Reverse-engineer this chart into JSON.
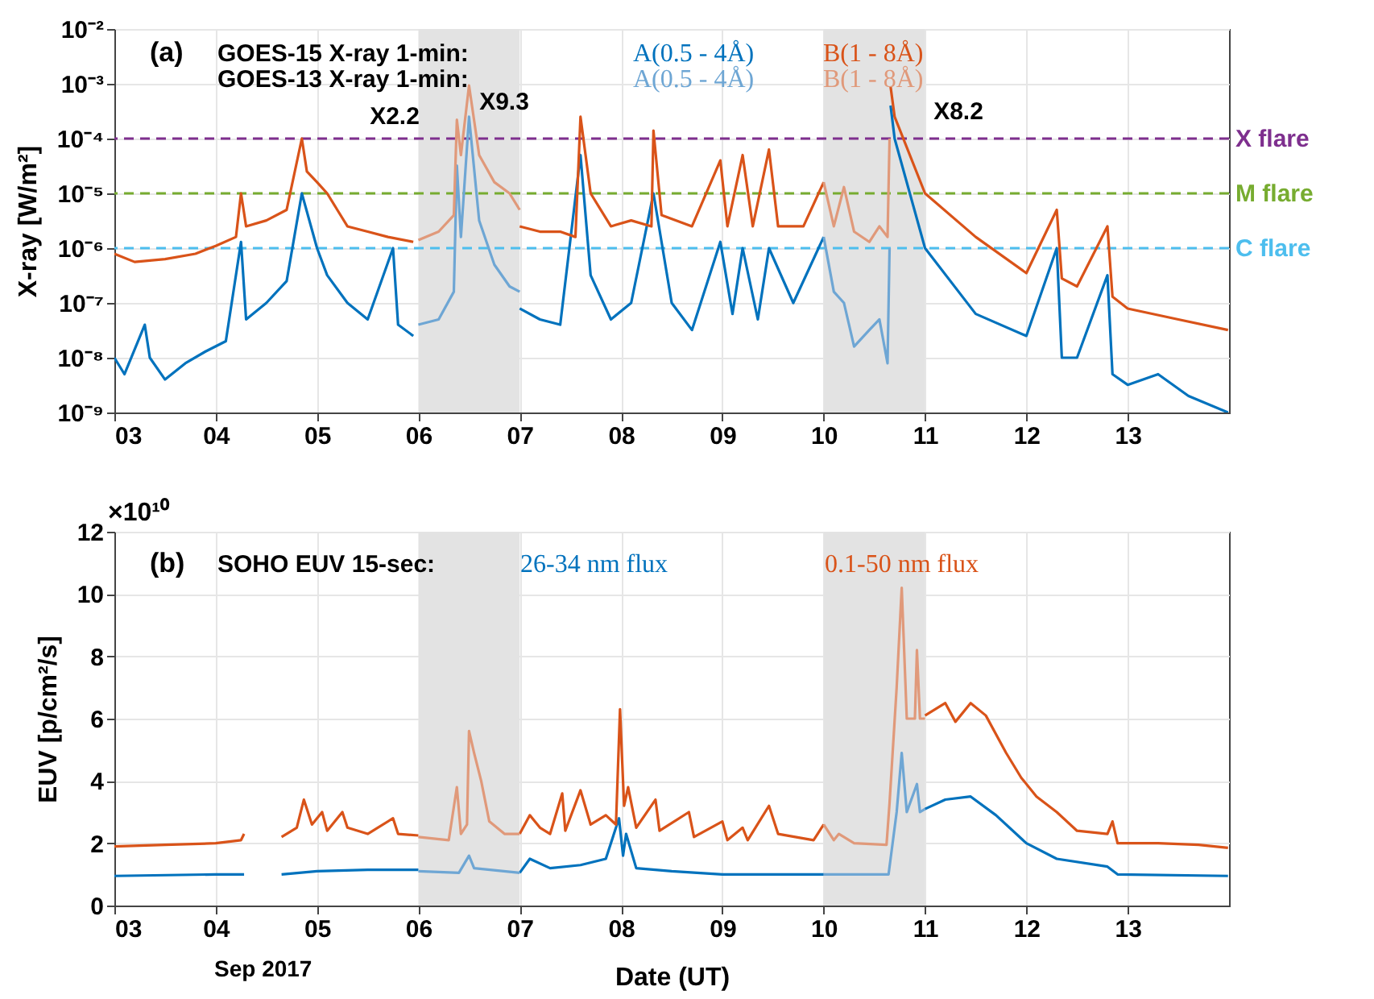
{
  "chart_data": [
    {
      "type": "line",
      "ylabel": "X-ray [W/m²]",
      "log": true,
      "grid": true,
      "legend": "top",
      "line_style": "solid",
      "xlim": [
        3,
        14
      ],
      "xticks": [
        {
          "value": 3,
          "label": "03"
        },
        {
          "value": 4,
          "label": "04"
        },
        {
          "value": 5,
          "label": "05"
        },
        {
          "value": 6,
          "label": "06"
        },
        {
          "value": 7,
          "label": "07"
        },
        {
          "value": 8,
          "label": "08"
        },
        {
          "value": 9,
          "label": "09"
        },
        {
          "value": 10,
          "label": "10"
        },
        {
          "value": 11,
          "label": "11"
        },
        {
          "value": 12,
          "label": "12"
        },
        {
          "value": 13,
          "label": "13"
        }
      ],
      "ylim": [
        1e-09,
        0.01
      ],
      "yticks": [
        {
          "value": 1e-09,
          "label": "10⁻⁹"
        },
        {
          "value": 1e-08,
          "label": "10⁻⁸"
        },
        {
          "value": 1e-07,
          "label": "10⁻⁷"
        },
        {
          "value": 1e-06,
          "label": "10⁻⁶"
        },
        {
          "value": 1e-05,
          "label": "10⁻⁵"
        },
        {
          "value": 0.0001,
          "label": "10⁻⁴"
        },
        {
          "value": 0.001,
          "label": "10⁻³"
        },
        {
          "value": 0.01,
          "label": "10⁻²"
        }
      ],
      "bands": [
        {
          "axis": "x",
          "from": 6,
          "to": 7,
          "color": "#e3e3e3"
        },
        {
          "axis": "x",
          "from": 10,
          "to": 11,
          "color": "#e3e3e3"
        }
      ],
      "ref_lines": [
        {
          "axis": "y",
          "value": 0.0001,
          "label": "X flare",
          "color": "#7e2f8e",
          "line_style": "dashed"
        },
        {
          "axis": "y",
          "value": 1e-05,
          "label": "M flare",
          "color": "#77ac30",
          "line_style": "dashed"
        },
        {
          "axis": "y",
          "value": 1e-06,
          "label": "C flare",
          "color": "#4dbeee",
          "line_style": "dashed"
        }
      ],
      "annotations": [
        "(a)",
        "GOES-15 X-ray 1-min:",
        "GOES-13 X-ray 1-min:",
        "X2.2",
        "X9.3",
        "X8.2"
      ],
      "series": [
        {
          "name": "A(0.5 - 4Å)",
          "color": "#0072bd",
          "x": [
            3.0,
            3.1,
            3.3,
            3.35,
            3.5,
            3.7,
            3.9,
            4.1,
            4.25,
            4.3,
            4.5,
            4.7,
            4.85,
            5.0,
            5.1,
            5.3,
            5.5,
            5.75,
            5.8,
            5.95,
            6.0,
            7.0,
            7.2,
            7.4,
            7.6,
            7.7,
            7.9,
            8.1,
            8.32,
            8.5,
            8.7,
            8.98,
            9.1,
            9.2,
            9.35,
            9.46,
            9.7,
            10.0,
            10.02,
            10.66,
            10.7,
            11.0,
            11.5,
            12.0,
            12.3,
            12.35,
            12.5,
            12.8,
            12.85,
            13.0,
            13.3,
            13.6,
            13.99
          ],
          "values": [
            1e-08,
            5e-09,
            4e-08,
            1e-08,
            4e-09,
            7.9e-09,
            1.3e-08,
            2e-08,
            1.3e-06,
            5e-08,
            1e-07,
            2.5e-07,
            1e-05,
            1e-06,
            3.2e-07,
            1e-07,
            5e-08,
            1e-06,
            4e-08,
            2.5e-08,
            null,
            7.9e-08,
            5e-08,
            4e-08,
            5e-05,
            3.2e-07,
            5e-08,
            1e-07,
            1e-05,
            1e-07,
            3.2e-08,
            1.3e-06,
            6.3e-08,
            1e-06,
            5e-08,
            1e-06,
            1e-07,
            1.6e-06,
            null,
            0.0004,
            0.0001,
            1e-06,
            6.3e-08,
            2.5e-08,
            1e-06,
            1e-08,
            1e-08,
            3.2e-07,
            5e-09,
            3.2e-09,
            5e-09,
            2e-09,
            1e-09
          ]
        },
        {
          "name": "B(1 - 8Å)",
          "color": "#d95319",
          "x": [
            3.0,
            3.2,
            3.5,
            3.8,
            4.0,
            4.2,
            4.25,
            4.3,
            4.5,
            4.7,
            4.85,
            4.9,
            5.0,
            5.1,
            5.2,
            5.3,
            5.5,
            5.7,
            5.95,
            6.0,
            7.0,
            7.2,
            7.4,
            7.55,
            7.6,
            7.7,
            7.9,
            8.1,
            8.3,
            8.32,
            8.4,
            8.7,
            8.98,
            9.05,
            9.2,
            9.3,
            9.46,
            9.55,
            9.8,
            10.0,
            10.02,
            10.66,
            10.7,
            11.0,
            11.5,
            12.0,
            12.3,
            12.35,
            12.5,
            12.8,
            12.85,
            13.0,
            13.5,
            13.99
          ],
          "values": [
            7.9e-07,
            5.6e-07,
            6.3e-07,
            7.9e-07,
            1.1e-06,
            1.6e-06,
            1e-05,
            2.5e-06,
            3.2e-06,
            5e-06,
            0.0001,
            2.5e-05,
            1.6e-05,
            1e-05,
            5e-06,
            2.5e-06,
            2e-06,
            1.6e-06,
            1.3e-06,
            null,
            2.5e-06,
            2e-06,
            2e-06,
            1.6e-06,
            0.00025,
            1e-05,
            2.5e-06,
            3.2e-06,
            2.5e-06,
            0.00014,
            4e-06,
            2.5e-06,
            4e-05,
            2.5e-06,
            5e-05,
            2.5e-06,
            6.3e-05,
            2.5e-06,
            2.5e-06,
            1.6e-05,
            null,
            0.00089,
            0.00025,
            1e-05,
            1.6e-06,
            3.5e-07,
            5e-06,
            2.8e-07,
            2e-07,
            2.5e-06,
            1.3e-07,
            7.9e-08,
            5e-08,
            3.2e-08
          ]
        },
        {
          "name": "A(0.5 - 4Å)",
          "color": "#6ea6d4",
          "x": [
            6.0,
            6.2,
            6.35,
            6.38,
            6.42,
            6.5,
            6.6,
            6.75,
            6.9,
            7.0,
            7.01,
            10.0,
            10.1,
            10.2,
            10.3,
            10.45,
            10.55,
            10.63,
            10.65
          ],
          "values": [
            4e-08,
            5e-08,
            1.6e-07,
            3.2e-05,
            1.6e-06,
            0.00025,
            3.2e-06,
            5e-07,
            2e-07,
            1.6e-07,
            null,
            1.6e-06,
            1.6e-07,
            1e-07,
            1.6e-08,
            3.2e-08,
            5e-08,
            7.9e-09,
            1e-06
          ]
        },
        {
          "name": "B(1 - 8Å)",
          "color": "#e0997a",
          "x": [
            6.0,
            6.2,
            6.35,
            6.38,
            6.42,
            6.5,
            6.6,
            6.75,
            6.9,
            7.0,
            7.01,
            10.0,
            10.1,
            10.2,
            10.3,
            10.45,
            10.55,
            10.63,
            10.65
          ],
          "values": [
            1.4e-06,
            2e-06,
            4e-06,
            0.00022,
            5e-05,
            0.00093,
            5e-05,
            1.6e-05,
            1e-05,
            5e-06,
            null,
            1.6e-05,
            2.5e-06,
            1.3e-05,
            2e-06,
            1.3e-06,
            2.5e-06,
            1.6e-06,
            0.0001
          ]
        }
      ]
    },
    {
      "type": "line",
      "ylabel": "EUV [p/cm²/s]",
      "xlabel": "Date (UT)",
      "grid": true,
      "legend": "top",
      "line_style": "solid",
      "xlim": [
        3,
        14
      ],
      "xticks": [
        {
          "value": 3,
          "label": "03"
        },
        {
          "value": 4,
          "label": "04"
        },
        {
          "value": 5,
          "label": "05"
        },
        {
          "value": 6,
          "label": "06"
        },
        {
          "value": 7,
          "label": "07"
        },
        {
          "value": 8,
          "label": "08"
        },
        {
          "value": 9,
          "label": "09"
        },
        {
          "value": 10,
          "label": "10"
        },
        {
          "value": 11,
          "label": "11"
        },
        {
          "value": 12,
          "label": "12"
        },
        {
          "value": 13,
          "label": "13"
        }
      ],
      "ylim": [
        0,
        12
      ],
      "yticks": [
        0,
        2,
        4,
        6,
        8,
        10,
        12
      ],
      "bands": [
        {
          "axis": "x",
          "from": 6,
          "to": 7,
          "color": "#e3e3e3"
        },
        {
          "axis": "x",
          "from": 10,
          "to": 11,
          "color": "#e3e3e3"
        }
      ],
      "annotations": [
        "(b)",
        "SOHO EUV 15-sec:",
        "×10¹⁰",
        "Sep 2017"
      ],
      "series": [
        {
          "name": "26-34 nm flux",
          "color": "#0072bd",
          "x": [
            3.0,
            4.0,
            4.28,
            4.3,
            4.65,
            5.0,
            5.5,
            6.0,
            6.01,
            7.0,
            7.1,
            7.3,
            7.6,
            7.85,
            7.98,
            8.02,
            8.05,
            8.15,
            8.5,
            9.0,
            10.0,
            10.01,
            11.0,
            11.2,
            11.45,
            11.7,
            12.0,
            12.3,
            12.8,
            12.9,
            13.99
          ],
          "values": [
            0.95,
            1.0,
            1.0,
            null,
            1.0,
            1.1,
            1.15,
            1.15,
            null,
            1.05,
            1.5,
            1.2,
            1.3,
            1.5,
            2.8,
            1.6,
            2.3,
            1.2,
            1.1,
            1.0,
            1.0,
            null,
            3.1,
            3.4,
            3.5,
            2.9,
            2.0,
            1.5,
            1.25,
            1.0,
            0.95
          ]
        },
        {
          "name": "0.1-50 nm flux",
          "color": "#d95319",
          "x": [
            3.0,
            3.5,
            4.0,
            4.25,
            4.28,
            4.3,
            4.65,
            4.8,
            4.87,
            4.95,
            5.05,
            5.1,
            5.25,
            5.3,
            5.5,
            5.75,
            5.8,
            6.0,
            6.01,
            7.0,
            7.1,
            7.2,
            7.3,
            7.42,
            7.45,
            7.6,
            7.7,
            7.85,
            7.95,
            7.99,
            8.03,
            8.07,
            8.15,
            8.34,
            8.38,
            8.67,
            8.72,
            9.0,
            9.05,
            9.2,
            9.25,
            9.46,
            9.55,
            9.9,
            10.0,
            10.01,
            11.0,
            11.2,
            11.3,
            11.45,
            11.6,
            11.8,
            11.95,
            12.1,
            12.3,
            12.5,
            12.8,
            12.85,
            12.9,
            13.3,
            13.7,
            13.99
          ],
          "values": [
            1.9,
            1.95,
            2.0,
            2.1,
            2.3,
            null,
            2.2,
            2.5,
            3.4,
            2.6,
            3.0,
            2.4,
            3.0,
            2.5,
            2.3,
            2.8,
            2.3,
            2.25,
            null,
            2.3,
            2.9,
            2.5,
            2.3,
            3.6,
            2.4,
            3.7,
            2.6,
            2.9,
            2.6,
            6.3,
            3.2,
            3.8,
            2.5,
            3.4,
            2.4,
            3.0,
            2.2,
            2.7,
            2.1,
            2.5,
            2.1,
            3.2,
            2.3,
            2.1,
            2.6,
            null,
            6.1,
            6.5,
            5.9,
            6.5,
            6.1,
            4.9,
            4.1,
            3.5,
            3.0,
            2.4,
            2.3,
            2.7,
            2.0,
            2.0,
            1.95,
            1.85
          ]
        },
        {
          "color": "#6ea6d4",
          "x": [
            6.0,
            6.4,
            6.5,
            6.55,
            7.0,
            7.01,
            10.0,
            10.64,
            10.72,
            10.77,
            10.82,
            10.92,
            10.95,
            11.0
          ],
          "values": [
            1.1,
            1.05,
            1.6,
            1.2,
            1.05,
            null,
            1.0,
            1.0,
            3.0,
            4.9,
            3.0,
            3.9,
            3.0,
            3.1
          ]
        },
        {
          "color": "#e0997a",
          "x": [
            6.0,
            6.3,
            6.38,
            6.42,
            6.48,
            6.5,
            6.55,
            6.62,
            6.7,
            6.85,
            7.0,
            7.01,
            10.0,
            10.1,
            10.15,
            10.3,
            10.62,
            10.65,
            10.72,
            10.77,
            10.82,
            10.9,
            10.92,
            10.95,
            11.0
          ],
          "values": [
            2.2,
            2.1,
            3.8,
            2.3,
            2.6,
            5.6,
            4.9,
            4.0,
            2.7,
            2.3,
            2.3,
            null,
            2.6,
            2.1,
            2.3,
            2.0,
            1.95,
            3.3,
            7.0,
            10.2,
            6.0,
            6.0,
            8.2,
            6.0,
            6.0
          ]
        }
      ]
    }
  ]
}
